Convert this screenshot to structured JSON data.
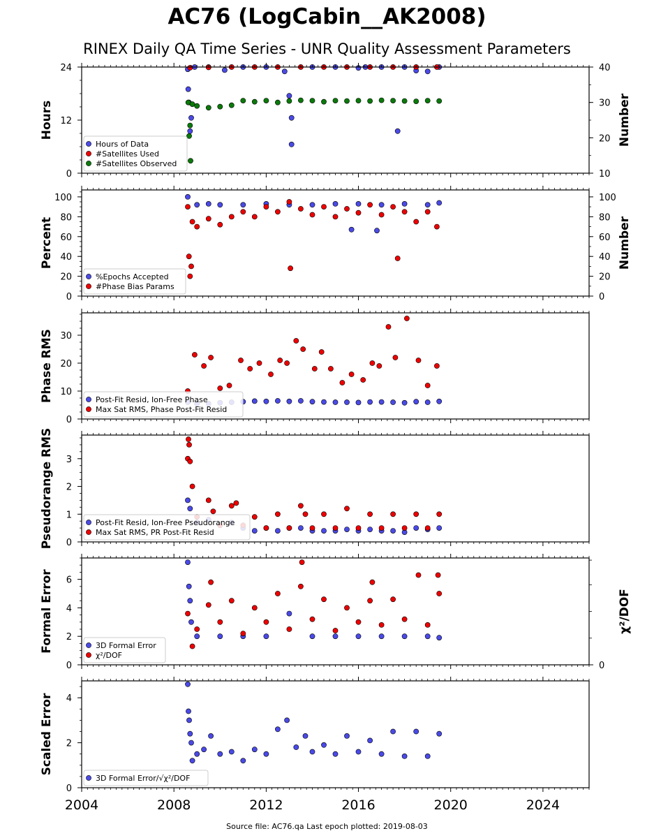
{
  "title": "AC76 (LogCabin__AK2008)",
  "subtitle": "RINEX Daily QA Time Series - UNR Quality Assessment Parameters",
  "footer": "Source file: AC76.qa Last epoch plotted: 2019-08-03",
  "colors": {
    "blue": "#4a4ae8",
    "red": "#ee0000",
    "green": "#0a7a0a",
    "edge": "#000000"
  },
  "chart_data": [
    {
      "type": "scatter",
      "ylabel": "Hours",
      "ylabel_right": "Number",
      "xlim": [
        2004,
        2026
      ],
      "ylim": [
        0,
        24
      ],
      "ylim_right": [
        10,
        40
      ],
      "yticks": [
        0,
        12,
        24
      ],
      "yticks_right": [
        10,
        20,
        30,
        40
      ],
      "legend_loc": "lower-left",
      "series": [
        {
          "name": "Hours of Data",
          "color": "#4a4ae8",
          "axis": "left",
          "x": [
            2008.6,
            2008.62,
            2008.65,
            2008.7,
            2008.75,
            2008.9,
            2009.5,
            2010.2,
            2011.0,
            2012.0,
            2012.8,
            2013.0,
            2013.1,
            2013.1,
            2014.0,
            2015.0,
            2016.0,
            2016.3,
            2017.0,
            2017.7,
            2018.0,
            2018.5,
            2019.0,
            2019.5
          ],
          "y": [
            23.5,
            19.0,
            16.0,
            9.5,
            12.5,
            24,
            24,
            23.3,
            24,
            24,
            23.0,
            17.5,
            12.5,
            6.5,
            24,
            24,
            23.8,
            24,
            24,
            9.5,
            24,
            23.2,
            23.0,
            24
          ]
        },
        {
          "name": "#Satellites Used",
          "color": "#ee0000",
          "axis": "right",
          "x": [
            2008.7,
            2009.5,
            2010.5,
            2011.5,
            2012.5,
            2013.5,
            2014.5,
            2015.5,
            2016.5,
            2017.5,
            2018.5,
            2019.4
          ],
          "y": [
            39.8,
            39.9,
            40,
            40,
            40,
            40,
            40,
            40,
            40,
            40,
            40,
            40
          ]
        },
        {
          "name": "#Satellites Observed",
          "color": "#0a7a0a",
          "axis": "right",
          "x": [
            2008.62,
            2008.66,
            2008.7,
            2008.72,
            2008.8,
            2009.0,
            2009.5,
            2010.0,
            2010.5,
            2011.0,
            2011.5,
            2012.0,
            2012.5,
            2013.0,
            2013.5,
            2014.0,
            2014.5,
            2015.0,
            2015.5,
            2016.0,
            2016.5,
            2017.0,
            2017.5,
            2018.0,
            2018.5,
            2019.0,
            2019.5
          ],
          "y": [
            30.0,
            20.5,
            23.5,
            13.5,
            29.5,
            29.0,
            28.5,
            28.8,
            29.2,
            30.5,
            30.2,
            30.5,
            30.0,
            30.4,
            30.6,
            30.5,
            30.2,
            30.5,
            30.4,
            30.5,
            30.4,
            30.6,
            30.5,
            30.4,
            30.3,
            30.5,
            30.4
          ]
        }
      ]
    },
    {
      "type": "scatter",
      "ylabel": "Percent",
      "ylabel_right": "Number",
      "xlim": [
        2004,
        2026
      ],
      "ylim": [
        0,
        107
      ],
      "ylim_right": [
        0,
        107
      ],
      "yticks": [
        0,
        20,
        40,
        60,
        80,
        100
      ],
      "yticks_right": [
        0,
        20,
        40,
        60,
        80,
        100
      ],
      "legend_loc": "lower-left",
      "series": [
        {
          "name": "%Epochs Accepted",
          "color": "#4a4ae8",
          "axis": "left",
          "x": [
            2008.6,
            2009.0,
            2009.5,
            2010.0,
            2011.0,
            2012.0,
            2013.0,
            2014.0,
            2015.0,
            2015.7,
            2016.0,
            2016.8,
            2017.0,
            2018.0,
            2019.0,
            2019.5
          ],
          "y": [
            100,
            92,
            93,
            92,
            92,
            93,
            92,
            92,
            93,
            67,
            93,
            66,
            92,
            93,
            92,
            94
          ]
        },
        {
          "name": "#Phase Bias Params",
          "color": "#ee0000",
          "axis": "right",
          "x": [
            2008.6,
            2008.65,
            2008.7,
            2008.75,
            2008.8,
            2009.0,
            2009.5,
            2010.0,
            2010.5,
            2011.0,
            2011.5,
            2012.0,
            2012.5,
            2013.0,
            2013.05,
            2013.5,
            2014.0,
            2014.5,
            2015.0,
            2015.5,
            2016.0,
            2016.5,
            2017.0,
            2017.5,
            2017.7,
            2018.0,
            2018.5,
            2019.0,
            2019.4
          ],
          "y": [
            90,
            40,
            20,
            30,
            75,
            70,
            78,
            72,
            80,
            85,
            80,
            90,
            85,
            95,
            28,
            88,
            82,
            90,
            80,
            88,
            84,
            92,
            82,
            90,
            38,
            85,
            75,
            85,
            70
          ]
        }
      ]
    },
    {
      "type": "scatter",
      "ylabel": "Phase RMS",
      "xlim": [
        2004,
        2026
      ],
      "ylim": [
        0,
        38
      ],
      "yticks": [
        0,
        10,
        20,
        30
      ],
      "legend_loc": "lower-left",
      "series": [
        {
          "name": "Post-Fit Resid, Ion-Free Phase",
          "color": "#4a4ae8",
          "axis": "left",
          "x": [
            2008.6,
            2009.0,
            2009.5,
            2010.0,
            2010.5,
            2011.0,
            2011.5,
            2012.0,
            2012.5,
            2013.0,
            2013.5,
            2014.0,
            2014.5,
            2015.0,
            2015.5,
            2016.0,
            2016.5,
            2017.0,
            2017.5,
            2018.0,
            2018.5,
            2019.0,
            2019.5
          ],
          "y": [
            6,
            5.5,
            5.5,
            5.8,
            6,
            6.2,
            6.4,
            6.3,
            6.5,
            6.3,
            6.5,
            6.2,
            6.1,
            6.0,
            6.0,
            5.9,
            6.1,
            6.1,
            6.0,
            5.8,
            6.2,
            6.0,
            6.3
          ]
        },
        {
          "name": "Max Sat RMS, Phase Post-Fit Resid",
          "color": "#ee0000",
          "axis": "left",
          "x": [
            2008.6,
            2008.9,
            2009.3,
            2009.6,
            2010.0,
            2010.4,
            2010.9,
            2011.3,
            2011.7,
            2012.2,
            2012.6,
            2012.9,
            2013.3,
            2013.6,
            2014.1,
            2014.4,
            2014.8,
            2015.3,
            2015.7,
            2016.2,
            2016.6,
            2016.9,
            2017.3,
            2017.6,
            2018.1,
            2018.6,
            2019.0,
            2019.4
          ],
          "y": [
            10,
            23,
            19,
            22,
            11,
            12,
            21,
            18,
            20,
            16,
            21,
            20,
            28,
            25,
            18,
            24,
            18,
            13,
            16,
            14,
            20,
            19,
            33,
            22,
            36,
            21,
            12,
            19
          ]
        }
      ]
    },
    {
      "type": "scatter",
      "ylabel": "Pseudorange RMS",
      "xlim": [
        2004,
        2026
      ],
      "ylim": [
        0,
        3.85
      ],
      "yticks": [
        0,
        1,
        2,
        3
      ],
      "legend_loc": "lower-left",
      "series": [
        {
          "name": "Post-Fit Resid, Ion-Free Pseudorange",
          "color": "#4a4ae8",
          "axis": "left",
          "x": [
            2008.6,
            2008.7,
            2009.0,
            2009.5,
            2010.0,
            2010.5,
            2011.0,
            2011.5,
            2012.0,
            2012.5,
            2013.0,
            2013.5,
            2014.0,
            2014.5,
            2015.0,
            2015.5,
            2016.0,
            2016.5,
            2017.0,
            2017.5,
            2018.0,
            2018.5,
            2019.0,
            2019.5
          ],
          "y": [
            1.5,
            1.2,
            0.7,
            0.8,
            0.6,
            0.7,
            0.5,
            0.4,
            0.5,
            0.4,
            0.5,
            0.5,
            0.4,
            0.4,
            0.4,
            0.45,
            0.4,
            0.45,
            0.4,
            0.4,
            0.35,
            0.5,
            0.45,
            0.5
          ]
        },
        {
          "name": "Max Sat RMS, PR Post-Fit Resid",
          "color": "#ee0000",
          "axis": "left",
          "x": [
            2008.6,
            2008.63,
            2008.66,
            2008.7,
            2008.8,
            2009.0,
            2009.5,
            2009.7,
            2010.0,
            2010.5,
            2010.7,
            2011.0,
            2011.5,
            2012.0,
            2012.5,
            2013.0,
            2013.5,
            2013.7,
            2014.0,
            2014.5,
            2015.0,
            2015.5,
            2016.0,
            2016.5,
            2017.0,
            2017.5,
            2018.0,
            2018.5,
            2019.0,
            2019.5
          ],
          "y": [
            3.0,
            3.7,
            3.5,
            2.9,
            2.0,
            0.9,
            1.5,
            1.1,
            0.6,
            1.3,
            1.4,
            0.6,
            0.9,
            0.5,
            1.0,
            0.5,
            1.3,
            1.0,
            0.5,
            1.0,
            0.5,
            1.2,
            0.5,
            1.0,
            0.5,
            1.0,
            0.5,
            1.0,
            0.5,
            1.0
          ]
        }
      ]
    },
    {
      "type": "scatter",
      "ylabel": "Formal Error",
      "ylabel_right": "χ²/DOF",
      "xlim": [
        2004,
        2026
      ],
      "ylim": [
        0,
        7.5
      ],
      "yticks": [
        0,
        2,
        4,
        6
      ],
      "yticks_right": [
        0
      ],
      "legend_loc": "lower-left",
      "series": [
        {
          "name": "3D Formal Error",
          "color": "#4a4ae8",
          "axis": "left",
          "x": [
            2008.6,
            2008.65,
            2008.7,
            2008.75,
            2009.0,
            2010.0,
            2011.0,
            2012.0,
            2013.0,
            2014.0,
            2015.0,
            2016.0,
            2017.0,
            2018.0,
            2019.0,
            2019.5
          ],
          "y": [
            7.2,
            5.5,
            4.5,
            3.0,
            2.0,
            2.0,
            2.0,
            2.0,
            3.6,
            2.0,
            2.0,
            2.0,
            2.0,
            2.0,
            2.0,
            1.9
          ]
        },
        {
          "name": "χ²/DOF",
          "color": "#ee0000",
          "axis": "left",
          "x": [
            2008.6,
            2008.8,
            2009.0,
            2009.5,
            2009.6,
            2010.0,
            2010.5,
            2011.0,
            2011.5,
            2012.0,
            2012.5,
            2013.0,
            2013.5,
            2013.55,
            2014.0,
            2014.5,
            2015.0,
            2015.5,
            2016.0,
            2016.5,
            2016.6,
            2017.0,
            2017.5,
            2018.0,
            2018.6,
            2019.0,
            2019.45,
            2019.5
          ],
          "y": [
            3.6,
            1.3,
            2.5,
            4.2,
            5.8,
            3.0,
            4.5,
            2.2,
            4.0,
            3.0,
            5.0,
            2.5,
            5.5,
            7.2,
            3.2,
            4.6,
            2.4,
            4.0,
            3.0,
            4.5,
            5.8,
            2.8,
            4.6,
            3.2,
            6.3,
            2.8,
            6.3,
            5.0
          ]
        }
      ]
    },
    {
      "type": "scatter",
      "ylabel": "Scaled Error",
      "xlim": [
        2004,
        2026
      ],
      "ylim": [
        0,
        4.75
      ],
      "yticks": [
        0,
        2,
        4
      ],
      "xticks": [
        2004,
        2008,
        2012,
        2016,
        2020,
        2024
      ],
      "legend_loc": "lower-left",
      "series": [
        {
          "name": "3D Formal Error/√χ²/DOF",
          "color": "#4a4ae8",
          "axis": "left",
          "x": [
            2008.6,
            2008.63,
            2008.66,
            2008.7,
            2008.75,
            2008.8,
            2009.0,
            2009.3,
            2009.6,
            2010.0,
            2010.5,
            2011.0,
            2011.5,
            2012.0,
            2012.5,
            2012.9,
            2013.3,
            2013.7,
            2014.0,
            2014.5,
            2015.0,
            2015.5,
            2016.0,
            2016.5,
            2017.0,
            2017.5,
            2018.0,
            2018.5,
            2019.0,
            2019.5
          ],
          "y": [
            4.6,
            3.4,
            3.0,
            2.4,
            2.0,
            1.2,
            1.5,
            1.7,
            2.3,
            1.5,
            1.6,
            1.2,
            1.7,
            1.5,
            2.6,
            3.0,
            1.8,
            2.3,
            1.6,
            1.9,
            1.5,
            2.3,
            1.6,
            2.1,
            1.5,
            2.5,
            1.4,
            2.5,
            1.4,
            2.4
          ]
        }
      ]
    }
  ]
}
